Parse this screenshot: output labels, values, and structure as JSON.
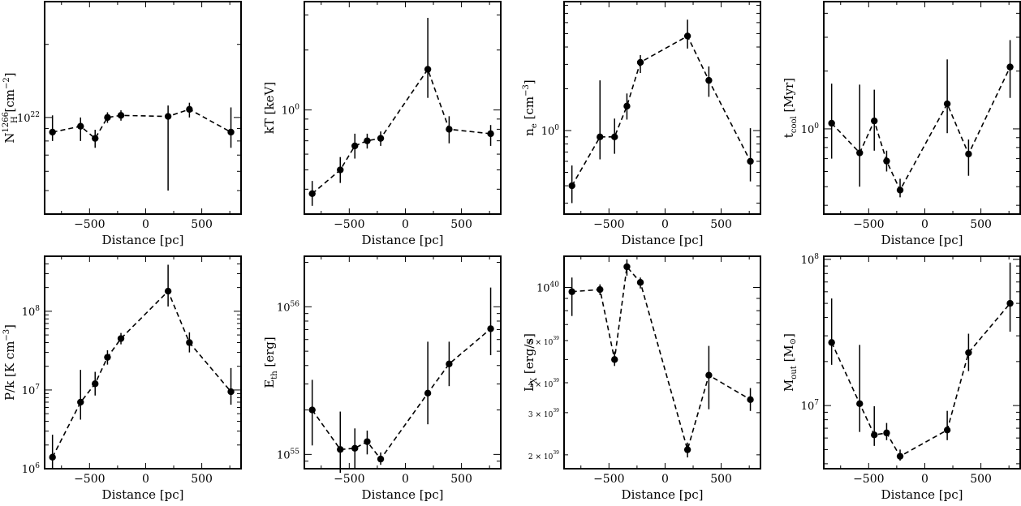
{
  "x_tick_labels": [
    "−500",
    "0",
    "500"
  ],
  "chart_data": [
    {
      "type": "line",
      "ylabel_main": "N",
      "ylabel_sub": "H",
      "ylabel_sup": "1266",
      "ylabel_unit": " [cm",
      "ylabel_unit_sup": "−2",
      "ylabel_unit_end": "]",
      "xlabel": "Distance [pc]",
      "yscale": "log",
      "ylim": [
        4e+21,
        3e+22
      ],
      "xlim": [
        -900,
        850
      ],
      "y_tick_labels": [
        {
          "value": 1e+22,
          "base": "10",
          "exp": "22"
        }
      ],
      "x": [
        -830,
        -580,
        -450,
        -340,
        -220,
        200,
        390,
        760
      ],
      "y": [
        8.7e+21,
        9.2e+21,
        8.2e+21,
        1e+22,
        1.02e+22,
        1.01e+22,
        1.08e+22,
        8.7e+21
      ],
      "yerr_low": [
        8e+21,
        8e+21,
        7.5e+21,
        9.5e+21,
        9.7e+21,
        5e+21,
        1e+22,
        7.5e+21
      ],
      "yerr_high": [
        1.02e+22,
        1e+22,
        8.9e+21,
        1.05e+22,
        1.07e+22,
        1.12e+22,
        1.15e+22,
        1.1e+22
      ]
    },
    {
      "type": "line",
      "ylabel_main": "kT [keV]",
      "xlabel": "Distance [pc]",
      "yscale": "log",
      "ylim": [
        0.3,
        3.5
      ],
      "xlim": [
        -900,
        850
      ],
      "y_tick_labels": [
        {
          "value": 1,
          "base": "10",
          "exp": "0"
        }
      ],
      "x": [
        -830,
        -580,
        -450,
        -340,
        -220,
        200,
        390,
        760
      ],
      "y": [
        0.38,
        0.5,
        0.66,
        0.7,
        0.72,
        1.6,
        0.8,
        0.76
      ],
      "yerr_low": [
        0.33,
        0.43,
        0.57,
        0.64,
        0.66,
        1.15,
        0.68,
        0.66
      ],
      "yerr_high": [
        0.44,
        0.58,
        0.76,
        0.76,
        0.78,
        2.9,
        0.93,
        0.84
      ]
    },
    {
      "type": "line",
      "ylabel_main": "n",
      "ylabel_sub": "e",
      "ylabel_unit": " [cm",
      "ylabel_unit_sup": "−3",
      "ylabel_unit_end": "]",
      "xlabel": "Distance [pc]",
      "yscale": "log",
      "ylim": [
        0.25,
        8.5
      ],
      "xlim": [
        -900,
        850
      ],
      "y_tick_labels": [
        {
          "value": 1,
          "base": "10",
          "exp": "0"
        }
      ],
      "x": [
        -830,
        -580,
        -450,
        -340,
        -220,
        200,
        390,
        760
      ],
      "y": [
        0.4,
        0.9,
        0.9,
        1.5,
        3.1,
        4.8,
        2.3,
        0.6
      ],
      "yerr_low": [
        0.3,
        0.62,
        0.68,
        1.2,
        2.6,
        3.9,
        1.75,
        0.43
      ],
      "yerr_high": [
        0.56,
        2.3,
        1.22,
        1.85,
        3.5,
        6.3,
        2.9,
        1.04
      ]
    },
    {
      "type": "line",
      "ylabel_main": "t",
      "ylabel_sub": "cool",
      "ylabel_unit": " [Myr]",
      "xlabel": "Distance [pc]",
      "yscale": "log",
      "ylim": [
        0.36,
        4.6
      ],
      "xlim": [
        -900,
        850
      ],
      "y_tick_labels": [
        {
          "value": 1,
          "base": "10",
          "exp": "0"
        }
      ],
      "x": [
        -830,
        -580,
        -450,
        -340,
        -220,
        200,
        390,
        760
      ],
      "y": [
        1.07,
        0.75,
        1.1,
        0.68,
        0.48,
        1.35,
        0.74,
        2.1
      ],
      "yerr_low": [
        0.7,
        0.5,
        0.77,
        0.6,
        0.44,
        0.95,
        0.57,
        1.45
      ],
      "yerr_high": [
        1.72,
        1.7,
        1.6,
        0.77,
        0.55,
        2.3,
        0.88,
        2.9
      ]
    },
    {
      "type": "line",
      "ylabel_main": "P/k [K cm",
      "ylabel_unit_sup": "−3",
      "ylabel_unit_end": "]",
      "xlabel": "Distance [pc]",
      "yscale": "log",
      "ylim": [
        1000000.0,
        500000000.0
      ],
      "xlim": [
        -900,
        850
      ],
      "y_tick_labels": [
        {
          "value": 1000000.0,
          "base": "10",
          "exp": "6"
        },
        {
          "value": 10000000.0,
          "base": "10",
          "exp": "7"
        },
        {
          "value": 100000000.0,
          "base": "10",
          "exp": "8"
        }
      ],
      "x": [
        -830,
        -580,
        -450,
        -340,
        -220,
        200,
        390,
        760
      ],
      "y": [
        1400000.0,
        7000000.0,
        12000000.0,
        26000000.0,
        45000000.0,
        180000000.0,
        40000000.0,
        9500000.0
      ],
      "yerr_low": [
        1000000.0,
        4200000.0,
        8500000.0,
        21000000.0,
        38000000.0,
        115000000.0,
        30000000.0,
        6500000.0
      ],
      "yerr_high": [
        2700000.0,
        18000000.0,
        17000000.0,
        32000000.0,
        53000000.0,
        390000000.0,
        54000000.0,
        19000000.0
      ]
    },
    {
      "type": "line",
      "ylabel_main": "E",
      "ylabel_sub": "th",
      "ylabel_unit": " [erg]",
      "xlabel": "Distance [pc]",
      "yscale": "log",
      "ylim": [
        8e+54,
        2.2e+56
      ],
      "xlim": [
        -900,
        850
      ],
      "y_tick_labels": [
        {
          "value": 1e+55,
          "base": "10",
          "exp": "55"
        },
        {
          "value": 1e+56,
          "base": "10",
          "exp": "56"
        }
      ],
      "x": [
        -830,
        -580,
        -450,
        -340,
        -220,
        200,
        390,
        760
      ],
      "y": [
        2e+55,
        1.08e+55,
        1.1e+55,
        1.22e+55,
        9.3e+54,
        2.6e+55,
        4.1e+55,
        7.1e+55
      ],
      "yerr_low": [
        1.15e+55,
        7.5e+54,
        7.9e+54,
        1e+55,
        8.5e+54,
        1.6e+55,
        2.9e+55,
        4.7e+55
      ],
      "yerr_high": [
        3.2e+55,
        1.95e+55,
        1.5e+55,
        1.45e+55,
        1.03e+55,
        5.8e+55,
        5.8e+55,
        1.35e+56
      ]
    },
    {
      "type": "line",
      "ylabel_main": "L",
      "ylabel_sub": "X",
      "ylabel_unit": " [erg/s]",
      "xlabel": "Distance [pc]",
      "yscale": "log",
      "ylim": [
        1.75e+39,
        1.35e+40
      ],
      "xlim": [
        -900,
        850
      ],
      "y_tick_labels": [
        {
          "value": 2e+39,
          "base": "2 × 10",
          "exp": "39"
        },
        {
          "value": 3e+39,
          "base": "3 × 10",
          "exp": "39"
        },
        {
          "value": 4e+39,
          "base": "4 × 10",
          "exp": "39"
        },
        {
          "value": 6e+39,
          "base": "6 × 10",
          "exp": "39"
        },
        {
          "value": 1e+40,
          "base": "10",
          "exp": "40"
        }
      ],
      "x": [
        -830,
        -580,
        -450,
        -340,
        -220,
        200,
        390,
        760
      ],
      "y": [
        9.6e+39,
        9.8e+39,
        5e+39,
        1.22e+40,
        1.05e+40,
        2.1e+39,
        4.3e+39,
        3.4e+39
      ],
      "yerr_low": [
        7.6e+39,
        9.3e+39,
        4.7e+39,
        1.12e+40,
        9.9e+39,
        1.95e+39,
        3.1e+39,
        3.05e+39
      ],
      "yerr_high": [
        1.1e+40,
        1.03e+40,
        5.4e+39,
        1.31e+40,
        1.1e+40,
        2.25e+39,
        5.7e+39,
        3.8e+39
      ]
    },
    {
      "type": "line",
      "ylabel_main": "M",
      "ylabel_sub": "out",
      "ylabel_unit": " [M",
      "ylabel_unit_subsym": "⊙",
      "ylabel_unit_end": "]",
      "xlabel": "Distance [pc]",
      "yscale": "log",
      "ylim": [
        3700000.0,
        105000000.0
      ],
      "xlim": [
        -900,
        850
      ],
      "y_tick_labels": [
        {
          "value": 10000000.0,
          "base": "10",
          "exp": "7"
        },
        {
          "value": 100000000.0,
          "base": "10",
          "exp": "8"
        }
      ],
      "x": [
        -830,
        -580,
        -450,
        -340,
        -220,
        200,
        390,
        760
      ],
      "y": [
        27000000.0,
        10300000.0,
        6300000.0,
        6500000.0,
        4500000.0,
        6800000.0,
        23000000.0,
        50000000.0
      ],
      "yerr_low": [
        19000000.0,
        6600000.0,
        5300000.0,
        5800000.0,
        4200000.0,
        5800000.0,
        17200000.0,
        32000000.0
      ],
      "yerr_high": [
        54000000.0,
        26000000.0,
        9900000.0,
        7600000.0,
        5000000.0,
        9200000.0,
        31000000.0,
        95000000.0
      ]
    }
  ]
}
